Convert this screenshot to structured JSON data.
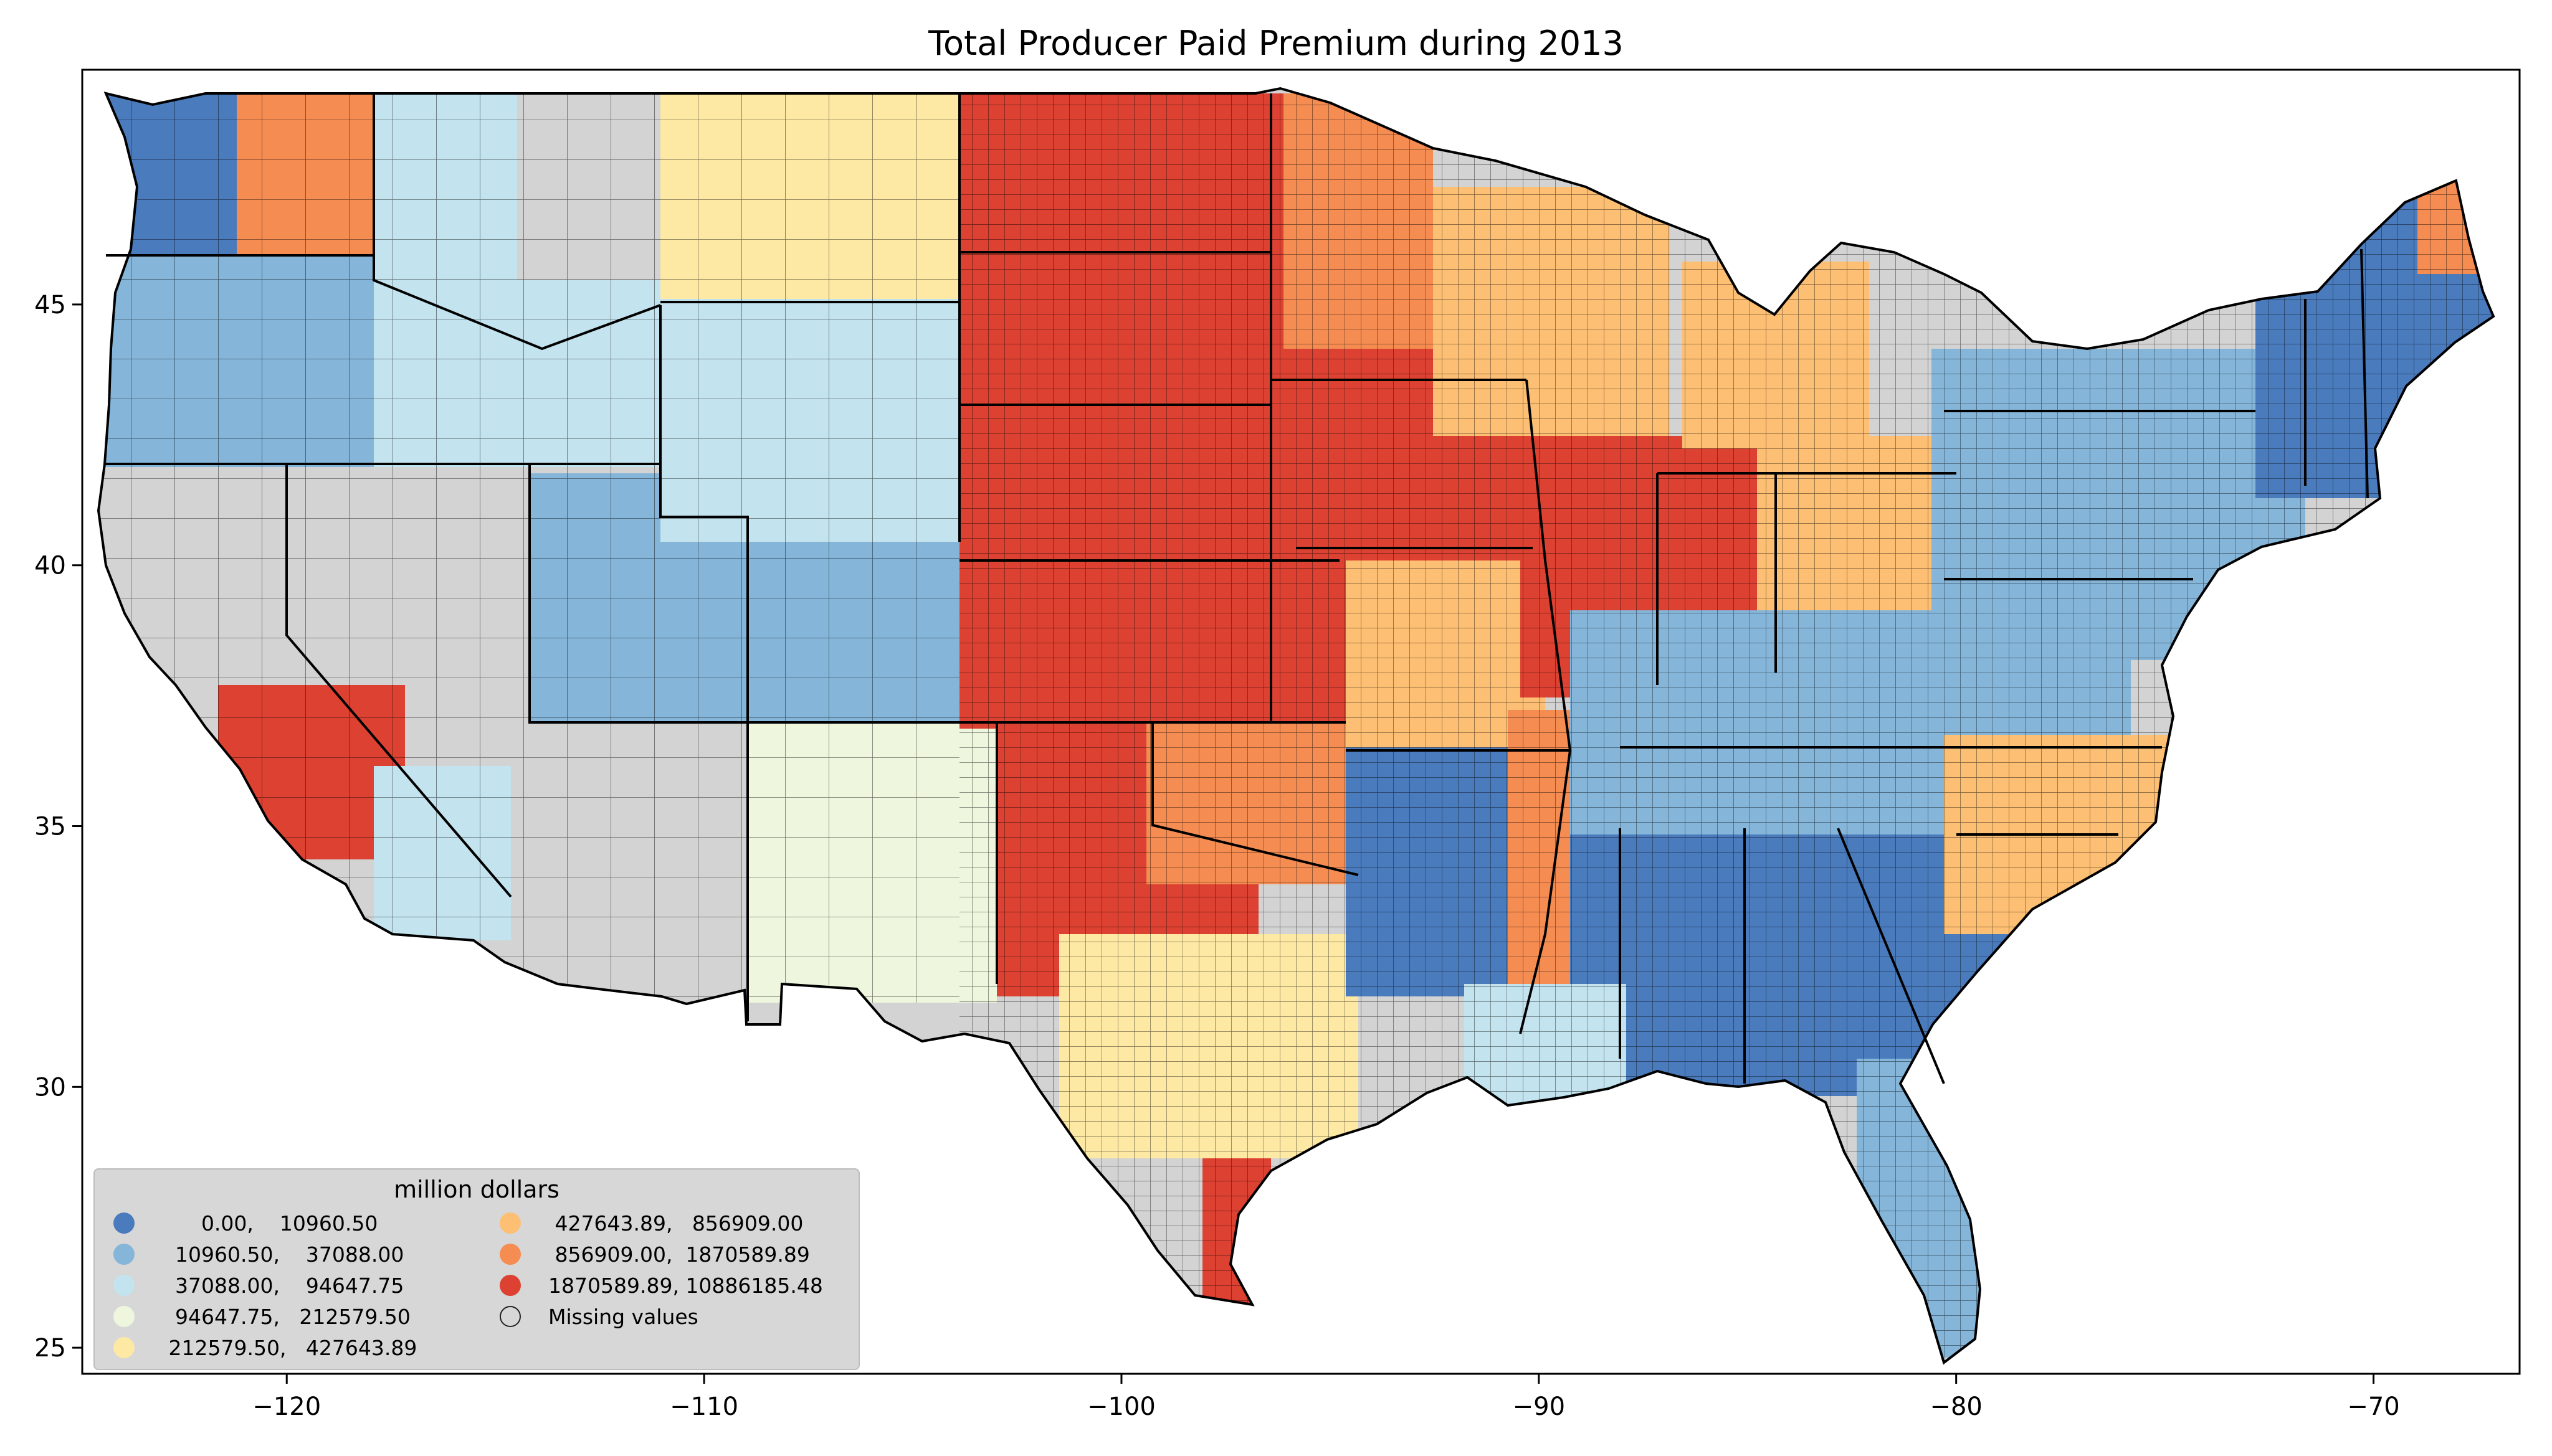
{
  "title": "Total Producer Paid Premium during 2013",
  "axes": {
    "x_ticks": [
      "−120",
      "−110",
      "−100",
      "−90",
      "−80",
      "−70"
    ],
    "y_ticks": [
      "45",
      "40",
      "35",
      "30",
      "25"
    ]
  },
  "map_data": {
    "type": "choropleth",
    "region": "contiguous United States, county level",
    "x_range": [
      -124.9,
      -66.5
    ],
    "y_range": [
      24.5,
      49.5
    ],
    "x_tick_values": [
      -120,
      -110,
      -100,
      -90,
      -80,
      -70
    ],
    "y_tick_values": [
      45,
      40,
      35,
      30,
      25
    ]
  },
  "legend": {
    "title": "million dollars",
    "items": [
      {
        "label": "      0.00,    10960.50",
        "color": "#4a7bbd"
      },
      {
        "label": "  10960.50,    37088.00",
        "color": "#85b6da"
      },
      {
        "label": "  37088.00,    94647.75",
        "color": "#c3e3ee"
      },
      {
        "label": "  94647.75,   212579.50",
        "color": "#eef7de"
      },
      {
        "label": " 212579.50,   427643.89",
        "color": "#fde9a4"
      },
      {
        "label": " 427643.89,   856909.00",
        "color": "#fdbf73"
      },
      {
        "label": " 856909.00,  1870589.89",
        "color": "#f58c52"
      },
      {
        "label": "1870589.89, 10886185.48",
        "color": "#dc4131"
      },
      {
        "label": "Missing values",
        "color": "#d3d3d3"
      }
    ]
  }
}
